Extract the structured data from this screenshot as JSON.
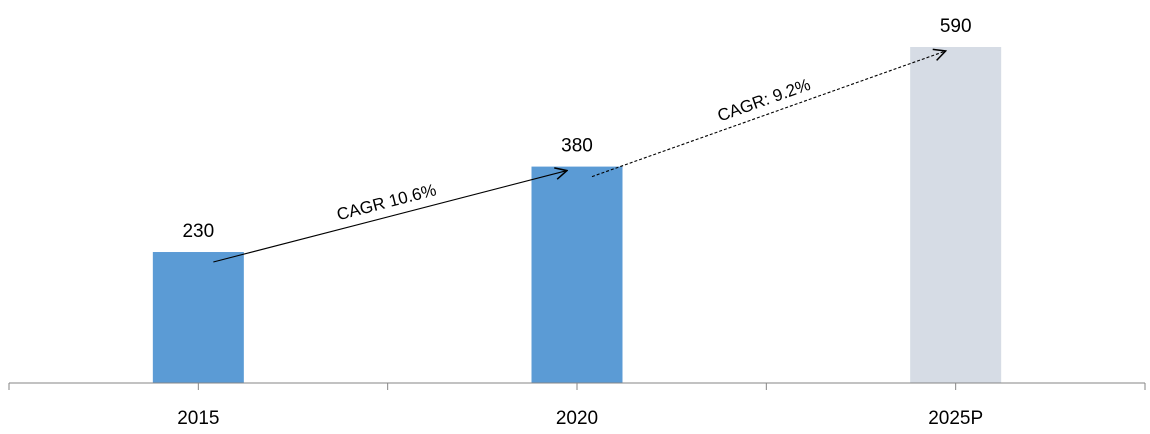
{
  "chart_data": {
    "type": "bar",
    "title": "",
    "xlabel": "",
    "ylabel": "",
    "ylim": [
      0,
      590
    ],
    "grid": false,
    "legend": "none",
    "categories": [
      "2015",
      "2020",
      "2025P"
    ],
    "values": [
      230,
      380,
      590
    ],
    "bar_colors": [
      "#5b9bd5",
      "#5b9bd5",
      "#d6dce5"
    ],
    "data_labels": [
      "230",
      "380",
      "590"
    ],
    "annotations": [
      {
        "text": "CAGR 10.6%",
        "from": "2015",
        "to": "2020",
        "style": "solid"
      },
      {
        "text": "CAGR: 9.2%",
        "from": "2020",
        "to": "2025P",
        "style": "dashed"
      }
    ]
  }
}
